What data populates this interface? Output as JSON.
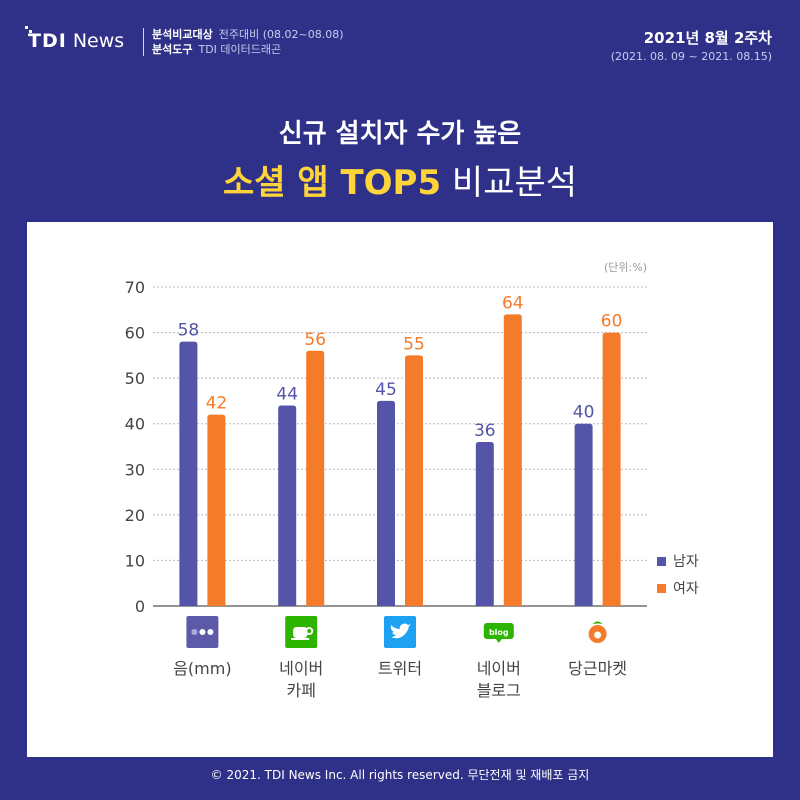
{
  "header": {
    "logo_tdi": "TDI",
    "logo_news": "News",
    "meta_label_1": "분석비교대상",
    "meta_value_1": "전주대비 (08.02~08.08)",
    "meta_label_2": "분석도구",
    "meta_value_2": "TDI 데이터드래곤",
    "period_main": "2021년 8월 2주차",
    "period_sub": "(2021. 08. 09 ~ 2021. 08.15)"
  },
  "title": {
    "line1": "신규 설치자 수가 높은",
    "line2_highlight": "소셜 앱 TOP5",
    "line2_rest": " 비교분석"
  },
  "footer": "© 2021. TDI News Inc. All rights reserved. 무단전재 및 재배포 금지",
  "colors": {
    "male": "#5454a8",
    "female": "#f47b2a",
    "background": "#2e3187",
    "highlight": "#ffd43a"
  },
  "chart_data": {
    "type": "bar",
    "unit_label": "(단위:%)",
    "categories": [
      {
        "lines": [
          "음(mm)"
        ],
        "icon": "mm-app-icon"
      },
      {
        "lines": [
          "네이버",
          "카페"
        ],
        "icon": "naver-cafe-icon"
      },
      {
        "lines": [
          "트위터"
        ],
        "icon": "twitter-icon"
      },
      {
        "lines": [
          "네이버",
          "블로그"
        ],
        "icon": "naver-blog-icon",
        "icon_text": "blog"
      },
      {
        "lines": [
          "당근마켓"
        ],
        "icon": "daangn-market-icon"
      }
    ],
    "series": [
      {
        "name": "남자",
        "values": [
          58,
          44,
          45,
          36,
          40
        ]
      },
      {
        "name": "여자",
        "values": [
          42,
          56,
          55,
          64,
          60
        ]
      }
    ],
    "ylim": [
      0,
      70
    ],
    "yticks": [
      0,
      10,
      20,
      30,
      40,
      50,
      60,
      70
    ],
    "grid": true,
    "legend": "right"
  }
}
